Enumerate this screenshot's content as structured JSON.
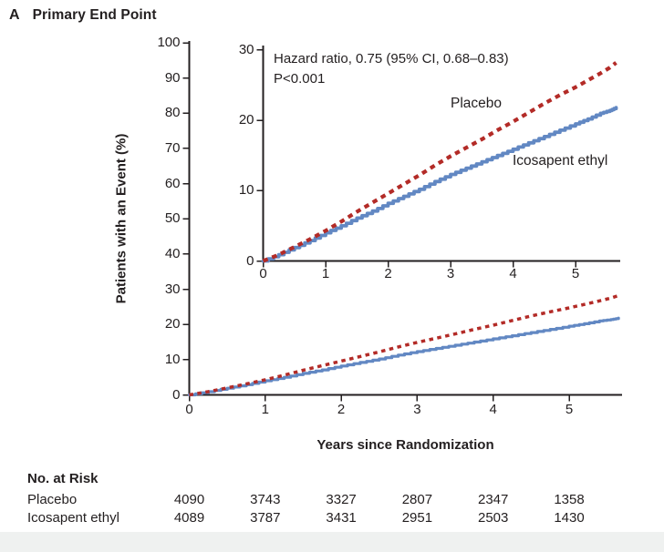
{
  "panel": {
    "letter": "A",
    "title": "Primary End Point"
  },
  "colors": {
    "axis": "#231f20",
    "text": "#231f20",
    "background": "#ffffff",
    "footer_band": "#eff1f0",
    "placebo_red": "#b32b27",
    "icosapent_blue": "#6288c3"
  },
  "chart_data": {
    "type": "line",
    "title": "Primary End Point",
    "xlabel": "Years since Randomization",
    "ylabel": "Patients with an Event (%)",
    "annotation_line1": "Hazard ratio, 0.75 (95% CI, 0.68–0.83)",
    "annotation_line2": "P<0.001",
    "grid": false,
    "legend_position": "inline curve labels inside inset",
    "main_axis": {
      "xlim": [
        0,
        5.7
      ],
      "ylim": [
        0,
        100
      ],
      "xticks": [
        0,
        1,
        2,
        3,
        4,
        5
      ],
      "yticks": [
        0,
        10,
        20,
        30,
        40,
        50,
        60,
        70,
        80,
        90,
        100
      ]
    },
    "inset_axis": {
      "xlim": [
        0,
        5.7
      ],
      "ylim": [
        0,
        30
      ],
      "xticks": [
        0,
        1,
        2,
        3,
        4,
        5
      ],
      "yticks": [
        0,
        10,
        20,
        30
      ]
    },
    "x": [
      0,
      0.25,
      0.5,
      0.75,
      1,
      1.25,
      1.5,
      1.75,
      2,
      2.25,
      2.5,
      2.75,
      3,
      3.25,
      3.5,
      3.75,
      4,
      4.25,
      4.5,
      4.75,
      5,
      5.2,
      5.4,
      5.55,
      5.65
    ],
    "series": [
      {
        "name": "Placebo",
        "line_style": "dashed",
        "color": "#b32b27",
        "values": [
          0,
          0.9,
          2.0,
          3.1,
          4.3,
          5.6,
          7.0,
          8.3,
          9.6,
          10.9,
          12.2,
          13.6,
          14.9,
          16.1,
          17.3,
          18.6,
          19.8,
          21.1,
          22.4,
          23.6,
          24.7,
          25.7,
          26.7,
          27.5,
          28.2
        ]
      },
      {
        "name": "Icosapent ethyl",
        "line_style": "solid",
        "color": "#6288c3",
        "values": [
          0,
          0.9,
          1.9,
          2.9,
          4.0,
          5.0,
          6.1,
          7.1,
          8.2,
          9.2,
          10.2,
          11.3,
          12.3,
          13.2,
          14.1,
          15.0,
          15.9,
          16.8,
          17.7,
          18.6,
          19.5,
          20.2,
          21.0,
          21.4,
          21.8
        ]
      }
    ],
    "risk_table": {
      "title": "No. at Risk",
      "time_points": [
        0,
        1,
        2,
        3,
        4,
        5
      ],
      "rows": [
        {
          "label": "Placebo",
          "values": [
            "4090",
            "3743",
            "3327",
            "2807",
            "2347",
            "1358"
          ]
        },
        {
          "label": "Icosapent ethyl",
          "values": [
            "4089",
            "3787",
            "3431",
            "2951",
            "2503",
            "1430"
          ]
        }
      ]
    }
  }
}
